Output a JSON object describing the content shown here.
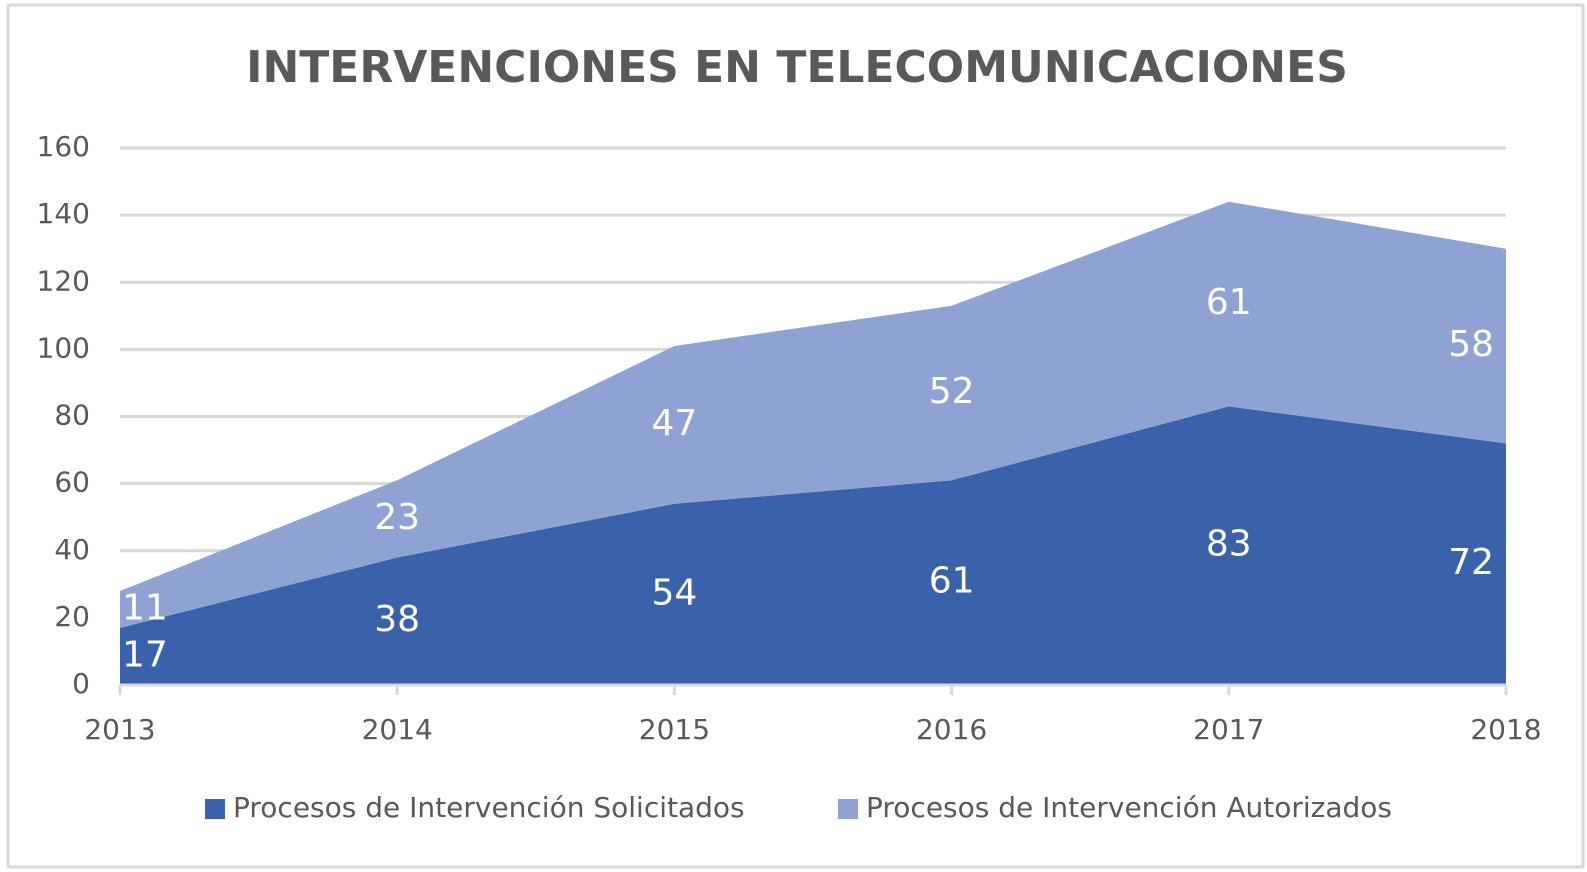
{
  "chart_data": {
    "type": "stacked_area",
    "title": "INTERVENCIONES EN TELECOMUNICACIONES",
    "categories": [
      "2013",
      "2014",
      "2015",
      "2016",
      "2017",
      "2018"
    ],
    "series": [
      {
        "name": "Procesos de Intervención Solicitados",
        "color": "#3a62aa",
        "values": [
          17,
          38,
          54,
          61,
          83,
          72
        ]
      },
      {
        "name": "Procesos de Intervención Autorizados",
        "color": "#8ea3d3",
        "values": [
          11,
          23,
          47,
          52,
          61,
          58
        ]
      }
    ],
    "ylim": [
      0,
      160
    ],
    "yticks": [
      0,
      20,
      40,
      60,
      80,
      100,
      120,
      140,
      160
    ],
    "grid": true,
    "legend": "bottom"
  }
}
